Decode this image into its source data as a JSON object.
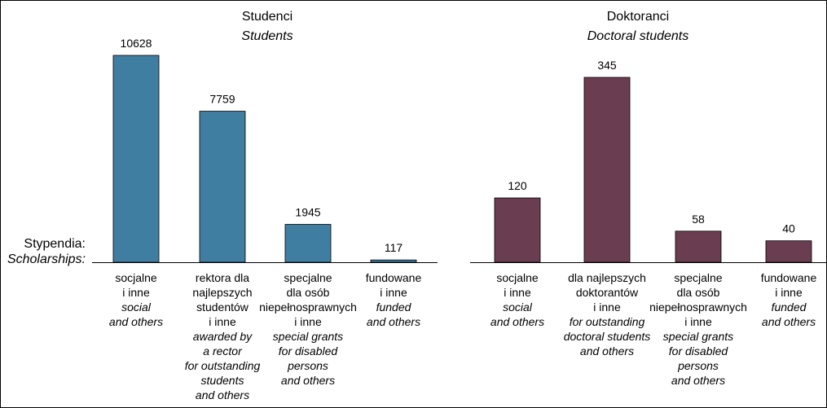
{
  "row_label": {
    "pl": "Stypendia:",
    "en": "Scholarships:"
  },
  "chart_data": [
    {
      "type": "bar",
      "title": "Studenci",
      "subtitle": "Students",
      "color": "#3f7ea0",
      "categories": [
        {
          "pl": [
            "socjalne",
            "i inne"
          ],
          "en": [
            "social",
            "and others"
          ]
        },
        {
          "pl": [
            "rektora dla",
            "najlepszych",
            "studentów",
            "i inne"
          ],
          "en": [
            "awarded by",
            "a rector",
            "for outstanding",
            "students",
            "and others"
          ]
        },
        {
          "pl": [
            "specjalne",
            "dla osób",
            "niepełnosprawnych",
            "i inne"
          ],
          "en": [
            "special grants",
            "for disabled",
            "persons",
            "and others"
          ]
        },
        {
          "pl": [
            "fundowane",
            "i inne"
          ],
          "en": [
            "funded",
            "and others"
          ]
        }
      ],
      "values": [
        10628,
        7759,
        1945,
        117
      ],
      "ylim": [
        0,
        10628
      ]
    },
    {
      "type": "bar",
      "title": "Doktoranci",
      "subtitle": "Doctoral students",
      "color": "#6b3d50",
      "categories": [
        {
          "pl": [
            "socjalne",
            "i inne"
          ],
          "en": [
            "social",
            "and others"
          ]
        },
        {
          "pl": [
            "dla najlepszych",
            "doktorantów",
            "i inne"
          ],
          "en": [
            "for outstanding",
            "doctoral students",
            "and others"
          ]
        },
        {
          "pl": [
            "specjalne",
            "dla osób",
            "niepełnosprawnych",
            "i inne"
          ],
          "en": [
            "special grants",
            "for disabled",
            "persons",
            "and others"
          ]
        },
        {
          "pl": [
            "fundowane",
            "i inne"
          ],
          "en": [
            "funded",
            "and others"
          ]
        }
      ],
      "values": [
        120,
        345,
        58,
        40
      ],
      "ylim": [
        0,
        345
      ]
    }
  ]
}
